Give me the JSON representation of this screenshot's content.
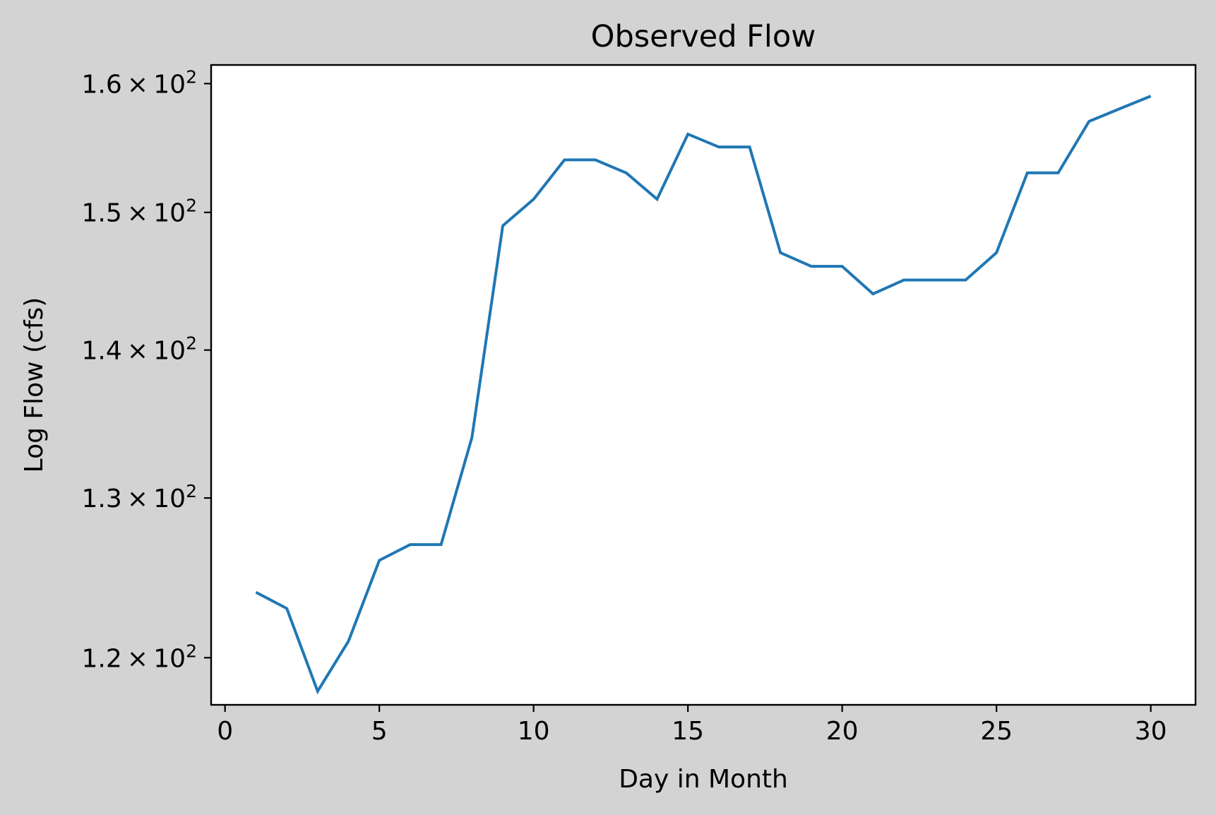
{
  "chart_data": {
    "type": "line",
    "title": "Observed Flow",
    "xlabel": "Day in Month",
    "ylabel": "Log Flow (cfs)",
    "yscale": "log",
    "xlim": [
      -0.45,
      31.45
    ],
    "ylim": [
      117.2,
      161.5
    ],
    "grid": false,
    "background": "#d3d3d3",
    "plot_background": "#ffffff",
    "x_ticks": [
      0,
      5,
      10,
      15,
      20,
      25,
      30
    ],
    "x_tick_labels": [
      "0",
      "5",
      "10",
      "15",
      "20",
      "25",
      "30"
    ],
    "y_ticks": [
      120,
      130,
      140,
      150,
      160
    ],
    "y_tick_mantissas": [
      "1.2",
      "1.3",
      "1.4",
      "1.5",
      "1.6"
    ],
    "y_tick_base": "10",
    "y_tick_exponent": "2",
    "series": [
      {
        "color": "#1f77b4",
        "x": [
          1,
          2,
          3,
          4,
          5,
          6,
          7,
          8,
          9,
          10,
          11,
          12,
          13,
          14,
          15,
          16,
          17,
          18,
          19,
          20,
          21,
          22,
          23,
          24,
          25,
          26,
          27,
          28,
          29,
          30
        ],
        "y": [
          124,
          123,
          118,
          121,
          126,
          127,
          127,
          134,
          149,
          151,
          154,
          154,
          153,
          151,
          156,
          155,
          155,
          147,
          146,
          146,
          144,
          145,
          145,
          145,
          147,
          153,
          153,
          157,
          158,
          159
        ]
      }
    ]
  }
}
